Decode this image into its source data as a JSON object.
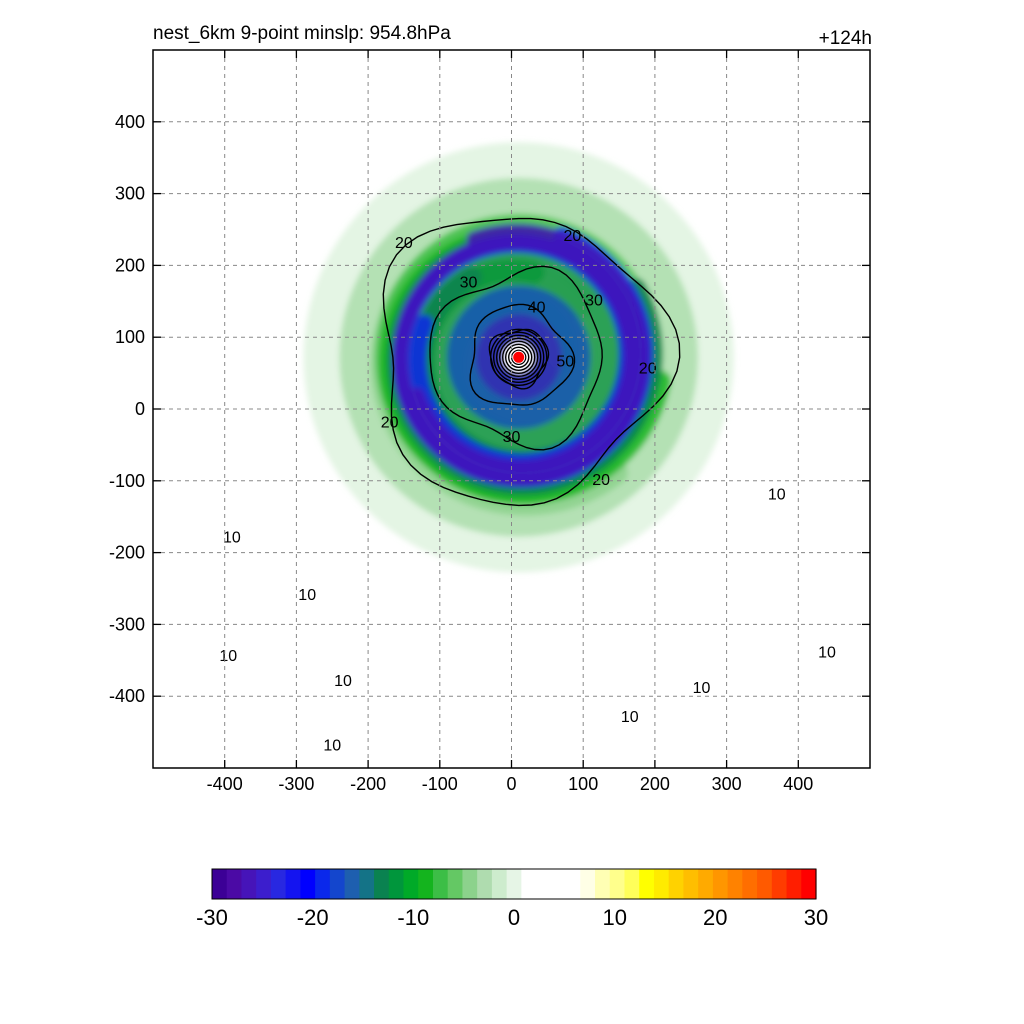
{
  "chart_data": {
    "type": "heatmap",
    "title_left": "nest_6km  9-point minslp: 954.8hPa",
    "title_right": "+124h",
    "xlim": [
      -500,
      500
    ],
    "ylim": [
      -500,
      500
    ],
    "x_ticks": [
      -400,
      -300,
      -200,
      -100,
      0,
      100,
      200,
      300,
      400
    ],
    "x_tick_labels": [
      "-400",
      "-300",
      "-200",
      "-100",
      "0",
      "100",
      "200",
      "300",
      "400"
    ],
    "y_ticks": [
      400,
      300,
      200,
      100,
      0,
      -100,
      -200,
      -300,
      -400
    ],
    "y_tick_labels": [
      "400",
      "300",
      "200",
      "100",
      "0",
      "-100",
      "-200",
      "-300",
      "-400"
    ],
    "grid": true,
    "storm_center": [
      10,
      72
    ],
    "contours": {
      "line_color": "#000000",
      "labeled_levels": [
        10,
        20,
        30,
        40,
        50
      ],
      "rings": [
        {
          "level": 50,
          "r": 40
        },
        {
          "level": 40,
          "r": 70
        },
        {
          "level": 30,
          "r": 120
        },
        {
          "level": 20,
          "r": 200
        }
      ],
      "labels": [
        {
          "text": "20",
          "x": -150,
          "y": 230
        },
        {
          "text": "20",
          "x": 85,
          "y": 240
        },
        {
          "text": "20",
          "x": 190,
          "y": 55
        },
        {
          "text": "20",
          "x": -170,
          "y": -20
        },
        {
          "text": "20",
          "x": 125,
          "y": -100
        },
        {
          "text": "30",
          "x": -60,
          "y": 175
        },
        {
          "text": "30",
          "x": 115,
          "y": 150
        },
        {
          "text": "30",
          "x": 0,
          "y": -40
        },
        {
          "text": "40",
          "x": 35,
          "y": 140
        },
        {
          "text": "50",
          "x": 75,
          "y": 65
        },
        {
          "text": "10",
          "x": 370,
          "y": -120
        },
        {
          "text": "10",
          "x": -390,
          "y": -180
        },
        {
          "text": "10",
          "x": -285,
          "y": -260
        },
        {
          "text": "10",
          "x": -395,
          "y": -345
        },
        {
          "text": "10",
          "x": -235,
          "y": -380
        },
        {
          "text": "10",
          "x": 265,
          "y": -390
        },
        {
          "text": "10",
          "x": 165,
          "y": -430
        },
        {
          "text": "10",
          "x": 440,
          "y": -340
        },
        {
          "text": "10",
          "x": -250,
          "y": -470
        }
      ]
    },
    "colorbar": {
      "min": -30,
      "max": 30,
      "tick_values": [
        -30,
        -20,
        -10,
        0,
        10,
        20,
        30
      ],
      "tick_labels": [
        "-30",
        "-20",
        "-10",
        "0",
        "10",
        "20",
        "30"
      ],
      "colors": [
        "#3c0096",
        "#4b0aa5",
        "#4614b9",
        "#3c1ecd",
        "#2828e1",
        "#1414f0",
        "#0000ff",
        "#0a28eb",
        "#1446cd",
        "#1e5faf",
        "#147387",
        "#0a8250",
        "#00963c",
        "#00aa28",
        "#14b41e",
        "#3cbe46",
        "#64c864",
        "#8cd28c",
        "#afdcaf",
        "#cdeccd",
        "#e6f5e6",
        "#ffffff",
        "#ffffff",
        "#ffffff",
        "#ffffff",
        "#ffffe6",
        "#ffffb4",
        "#ffff8c",
        "#ffff5a",
        "#ffff00",
        "#ffeb00",
        "#ffd200",
        "#ffbe00",
        "#ffaa00",
        "#ff9600",
        "#ff8200",
        "#ff6e00",
        "#ff5a00",
        "#ff3c00",
        "#ff1e00",
        "#ff0000"
      ]
    },
    "color_bands": [
      {
        "value": -2,
        "r1": 0,
        "r2": 300
      },
      {
        "value": -5,
        "r1": 60,
        "r2": 250
      },
      {
        "value": -9,
        "r1": 80,
        "r2": 200
      },
      {
        "value": -13,
        "r1": 100,
        "r2": 150
      },
      {
        "value": -20,
        "r1": 120,
        "r2": 100
      },
      {
        "value": -27,
        "r1": 140,
        "r2": 60
      }
    ]
  }
}
